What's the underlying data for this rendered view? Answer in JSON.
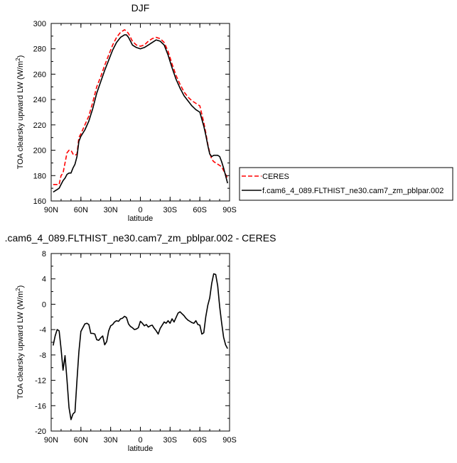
{
  "chart_data": [
    {
      "type": "line",
      "title": "DJF",
      "xlabel": "latitude",
      "ylabel": "TOA clearsky upward LW (W/m",
      "ylabel_sup": "2",
      "ylabel_close": ")",
      "xlim": [
        90,
        -90
      ],
      "ylim": [
        160,
        300
      ],
      "x_ticks": [
        90,
        60,
        30,
        0,
        -30,
        -60,
        -90
      ],
      "x_tick_labels": [
        "90N",
        "60N",
        "30N",
        "0",
        "30S",
        "60S",
        "90S"
      ],
      "y_ticks": [
        160,
        180,
        200,
        220,
        240,
        260,
        280,
        300
      ],
      "y_tick_labels": [
        "160",
        "180",
        "200",
        "220",
        "240",
        "260",
        "280",
        "300"
      ],
      "legend_position": "right",
      "series": [
        {
          "name": "CERES",
          "color": "#ff0000",
          "dash": "dashed",
          "x": [
            88,
            86,
            84,
            82,
            80,
            78,
            76,
            74,
            72,
            70,
            68,
            66,
            64,
            62,
            60,
            56,
            52,
            48,
            44,
            40,
            36,
            32,
            28,
            24,
            20,
            16,
            14,
            12,
            10,
            8,
            4,
            0,
            -4,
            -8,
            -12,
            -16,
            -20,
            -24,
            -28,
            -32,
            -36,
            -40,
            -44,
            -48,
            -52,
            -56,
            -60,
            -64,
            -66,
            -68,
            -70,
            -72,
            -74,
            -76,
            -78,
            -80,
            -82,
            -84,
            -86,
            -88
          ],
          "y": [
            173,
            173,
            173,
            173,
            180,
            182,
            190,
            198,
            200,
            200,
            197,
            196,
            197,
            210,
            213,
            220,
            227,
            238,
            250,
            258,
            267,
            275,
            283,
            289,
            293,
            295,
            294,
            292,
            289,
            286,
            283,
            282,
            283,
            286,
            288,
            289,
            288,
            285,
            278,
            268,
            259,
            252,
            246,
            242,
            239,
            237,
            235,
            222,
            214,
            205,
            198,
            193,
            191,
            190,
            189,
            188,
            187,
            184,
            181,
            178
          ]
        },
        {
          "name": "f.cam6_4_089.FLTHIST_ne30.cam7_zm_pblpar.002",
          "color": "#000000",
          "dash": "solid",
          "x": [
            88,
            86,
            84,
            82,
            80,
            78,
            76,
            74,
            72,
            70,
            68,
            66,
            64,
            62,
            60,
            56,
            52,
            48,
            44,
            40,
            36,
            32,
            28,
            24,
            20,
            16,
            14,
            12,
            10,
            8,
            4,
            0,
            -4,
            -8,
            -12,
            -16,
            -20,
            -24,
            -28,
            -32,
            -36,
            -40,
            -44,
            -48,
            -52,
            -56,
            -60,
            -64,
            -66,
            -68,
            -70,
            -72,
            -74,
            -76,
            -78,
            -80,
            -82,
            -84,
            -86,
            -88
          ],
          "y": [
            167,
            168,
            169,
            170,
            173,
            176,
            178,
            181,
            182,
            182,
            186,
            189,
            195,
            207,
            211,
            216,
            223,
            233,
            245,
            254,
            263,
            271,
            279,
            285,
            289,
            291,
            291,
            289,
            286,
            283,
            281,
            280,
            281,
            283,
            285,
            287,
            286,
            283,
            275,
            265,
            256,
            249,
            243,
            239,
            235,
            232,
            230,
            219,
            212,
            204,
            197,
            195,
            196,
            196,
            196,
            195,
            191,
            186,
            180,
            174
          ]
        }
      ]
    },
    {
      "type": "line",
      "title": ".cam6_4_089.FLTHIST_ne30.cam7_zm_pblpar.002 - CERES",
      "xlabel": "latitude",
      "ylabel": "TOA clearsky upward LW (W/m",
      "ylabel_sup": "2",
      "ylabel_close": ")",
      "xlim": [
        90,
        -90
      ],
      "ylim": [
        -20,
        8
      ],
      "x_ticks": [
        90,
        60,
        30,
        0,
        -30,
        -60,
        -90
      ],
      "x_tick_labels": [
        "90N",
        "60N",
        "30N",
        "0",
        "30S",
        "60S",
        "90S"
      ],
      "y_ticks": [
        -20,
        -16,
        -12,
        -8,
        -4,
        0,
        4,
        8
      ],
      "y_tick_labels": [
        "-20",
        "-16",
        "-12",
        "-8",
        "-4",
        "0",
        "4",
        "8"
      ],
      "series": [
        {
          "color": "#000000",
          "dash": "solid",
          "x": [
            88,
            86,
            84,
            82,
            80,
            78,
            76,
            74,
            72,
            70,
            68,
            66,
            64,
            62,
            60,
            56,
            54,
            52,
            50,
            48,
            46,
            44,
            42,
            40,
            38,
            36,
            34,
            32,
            30,
            28,
            26,
            24,
            22,
            20,
            18,
            16,
            14,
            12,
            10,
            8,
            6,
            4,
            2,
            0,
            -2,
            -4,
            -6,
            -8,
            -10,
            -12,
            -14,
            -16,
            -18,
            -20,
            -22,
            -24,
            -26,
            -28,
            -30,
            -32,
            -34,
            -36,
            -38,
            -40,
            -42,
            -44,
            -46,
            -48,
            -50,
            -52,
            -54,
            -56,
            -58,
            -60,
            -62,
            -64,
            -66,
            -68,
            -70,
            -72,
            -74,
            -76,
            -78,
            -80,
            -82,
            -84,
            -86,
            -88
          ],
          "y": [
            -6.5,
            -5,
            -4,
            -4.2,
            -7,
            -10.4,
            -8.1,
            -12,
            -16.3,
            -18.2,
            -17.3,
            -17,
            -12,
            -7.5,
            -4.3,
            -3.1,
            -3.0,
            -3.2,
            -4.6,
            -4.6,
            -4.7,
            -5.6,
            -5.7,
            -5.3,
            -5.0,
            -6.4,
            -5.9,
            -4.2,
            -3.4,
            -3.2,
            -2.8,
            -2.6,
            -2.7,
            -2.3,
            -2.2,
            -1.9,
            -2.1,
            -3.1,
            -3.5,
            -3.7,
            -4.0,
            -3.9,
            -3.7,
            -2.7,
            -3.0,
            -3.4,
            -3.2,
            -3.6,
            -3.4,
            -3.3,
            -3.8,
            -4.2,
            -4.7,
            -3.8,
            -3.3,
            -2.8,
            -3.0,
            -2.6,
            -3.0,
            -2.3,
            -2.8,
            -2.1,
            -1.4,
            -1.2,
            -1.5,
            -1.8,
            -2.2,
            -2.5,
            -2.7,
            -2.9,
            -3.0,
            -2.6,
            -3.2,
            -3.3,
            -4.7,
            -4.5,
            -2.0,
            -0.2,
            1.0,
            3.3,
            4.8,
            4.7,
            2.9,
            -0.4,
            -2.9,
            -5.2,
            -6.4,
            -7.0
          ]
        }
      ]
    }
  ]
}
